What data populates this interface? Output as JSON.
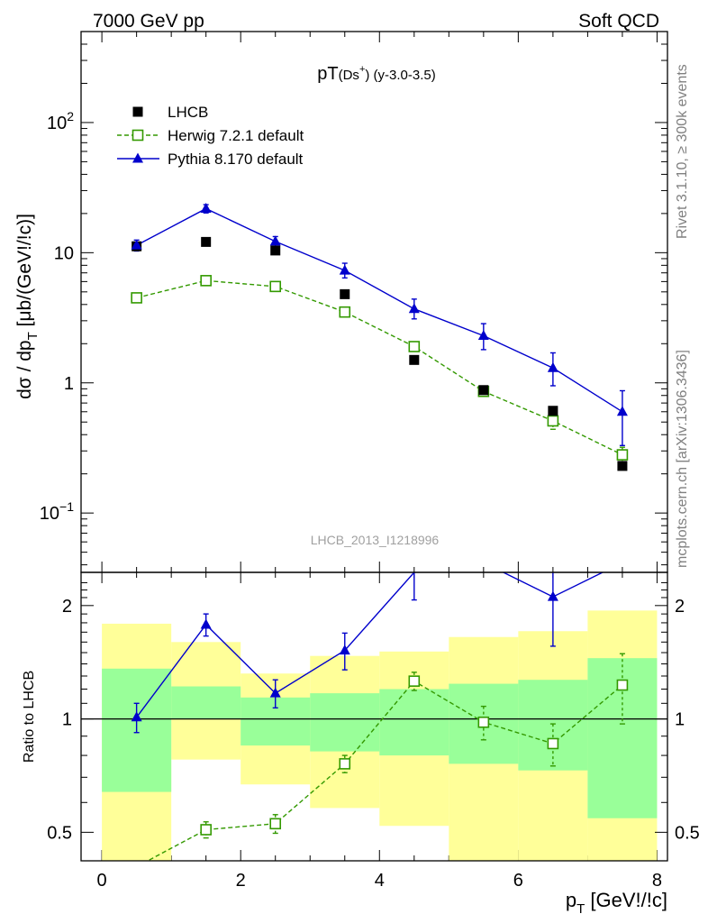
{
  "header": {
    "left": "7000 GeV pp",
    "right": "Soft QCD",
    "side_top": "Rivet 3.1.10, ≥ 300k events",
    "side_bottom": "mcplots.cern.ch [arXiv:1306.3436]",
    "watermark": "LHCB_2013_I1218996"
  },
  "colors": {
    "lhcb": "#000000",
    "herwig": "#339900",
    "pythia": "#0000cc",
    "band_inner": "#99ff99",
    "band_outer": "#ffff99"
  },
  "chart_data": [
    {
      "type": "line",
      "panel": "main",
      "title_main": "pT",
      "title_sub": "(Ds",
      "title_sup": "+",
      "title_rest": ") (y-3.0-3.5)",
      "ylabel": "dσ / dp",
      "ylabel_sub": "T",
      "ylabel_rest": " [μb/(GeV!/!c)]",
      "yscale": "log",
      "ylim": [
        0.035,
        500
      ],
      "xlim": [
        -0.3,
        8.15
      ],
      "y_ticks": [
        {
          "value": 0.1,
          "base": "10",
          "exp": "−1"
        },
        {
          "value": 1,
          "base": "1",
          "exp": ""
        },
        {
          "value": 10,
          "base": "10",
          "exp": ""
        },
        {
          "value": 100,
          "base": "10",
          "exp": "2"
        }
      ],
      "legend_position": "top-left",
      "x": [
        0.5,
        1.5,
        2.5,
        3.5,
        4.5,
        5.5,
        6.5,
        7.5
      ],
      "series": [
        {
          "name": "LHCB",
          "marker": "filled-square",
          "values": [
            11.2,
            12.1,
            10.4,
            4.8,
            1.5,
            0.88,
            0.61,
            0.23
          ]
        },
        {
          "name": "Herwig 7.2.1 default",
          "marker": "open-square",
          "dashed": true,
          "values": [
            4.5,
            6.1,
            5.5,
            3.5,
            1.9,
            0.86,
            0.51,
            0.28
          ],
          "err_low": [
            0.0,
            0.0,
            0.0,
            0.0,
            0.0,
            0.0,
            0.07,
            0.04
          ],
          "err_high": [
            0.0,
            0.0,
            0.0,
            0.0,
            0.0,
            0.0,
            0.07,
            0.04
          ]
        },
        {
          "name": "Pythia 8.170 default",
          "marker": "triangle",
          "values": [
            11.4,
            21.8,
            12.2,
            7.3,
            3.7,
            2.3,
            1.3,
            0.6
          ],
          "err_low": [
            1.1,
            1.6,
            1.1,
            0.9,
            0.6,
            0.5,
            0.35,
            0.27
          ],
          "err_high": [
            1.1,
            1.6,
            1.1,
            1.0,
            0.7,
            0.55,
            0.4,
            0.27
          ]
        }
      ]
    },
    {
      "type": "line",
      "panel": "ratio",
      "xlabel": "p",
      "xlabel_sub": "T",
      "xlabel_rest": " [GeV!/!c]",
      "ylabel": "Ratio to LHCB",
      "yscale": "log",
      "ylim": [
        0.42,
        2.45
      ],
      "xlim": [
        -0.3,
        8.15
      ],
      "x_ticks": [
        0,
        2,
        4,
        6,
        8
      ],
      "y_ticks": [
        {
          "value": 0.5,
          "label": "0.5"
        },
        {
          "value": 1,
          "label": "1"
        },
        {
          "value": 2,
          "label": "2"
        }
      ],
      "bins": [
        [
          0,
          1
        ],
        [
          1,
          2
        ],
        [
          2,
          3
        ],
        [
          3,
          4
        ],
        [
          4,
          5
        ],
        [
          5,
          6
        ],
        [
          6,
          7
        ],
        [
          7,
          8
        ]
      ],
      "band_inner": {
        "low": [
          0.64,
          1.0,
          0.85,
          0.82,
          0.8,
          0.76,
          0.73,
          0.545
        ],
        "high": [
          1.36,
          1.22,
          1.14,
          1.17,
          1.2,
          1.24,
          1.27,
          1.45
        ]
      },
      "band_outer": {
        "low": [
          0.35,
          0.78,
          0.67,
          0.58,
          0.52,
          0.405,
          0.41,
          0.39
        ],
        "high": [
          1.79,
          1.6,
          1.32,
          1.47,
          1.51,
          1.65,
          1.71,
          1.94
        ]
      },
      "x": [
        0.5,
        1.5,
        2.5,
        3.5,
        4.5,
        5.5,
        6.5,
        7.5
      ],
      "series": [
        {
          "name": "Herwig 7.2.1 default",
          "marker": "open-square",
          "dashed": true,
          "values": [
            0.405,
            0.508,
            0.527,
            0.76,
            1.26,
            0.98,
            0.86,
            1.23
          ],
          "err_low": [
            0.015,
            0.025,
            0.03,
            0.04,
            0.07,
            0.1,
            0.11,
            0.26
          ],
          "err_high": [
            0.015,
            0.025,
            0.03,
            0.04,
            0.07,
            0.1,
            0.11,
            0.26
          ]
        },
        {
          "name": "Pythia 8.170 default",
          "marker": "triangle",
          "values": [
            1.01,
            1.78,
            1.17,
            1.52,
            2.45,
            2.6,
            2.11,
            2.6
          ],
          "err_low": [
            0.09,
            0.12,
            0.1,
            0.17,
            0.38,
            0.0,
            0.55,
            0.0
          ],
          "err_high": [
            0.09,
            0.12,
            0.1,
            0.17,
            0.38,
            0.0,
            0.55,
            0.0
          ]
        }
      ]
    }
  ]
}
